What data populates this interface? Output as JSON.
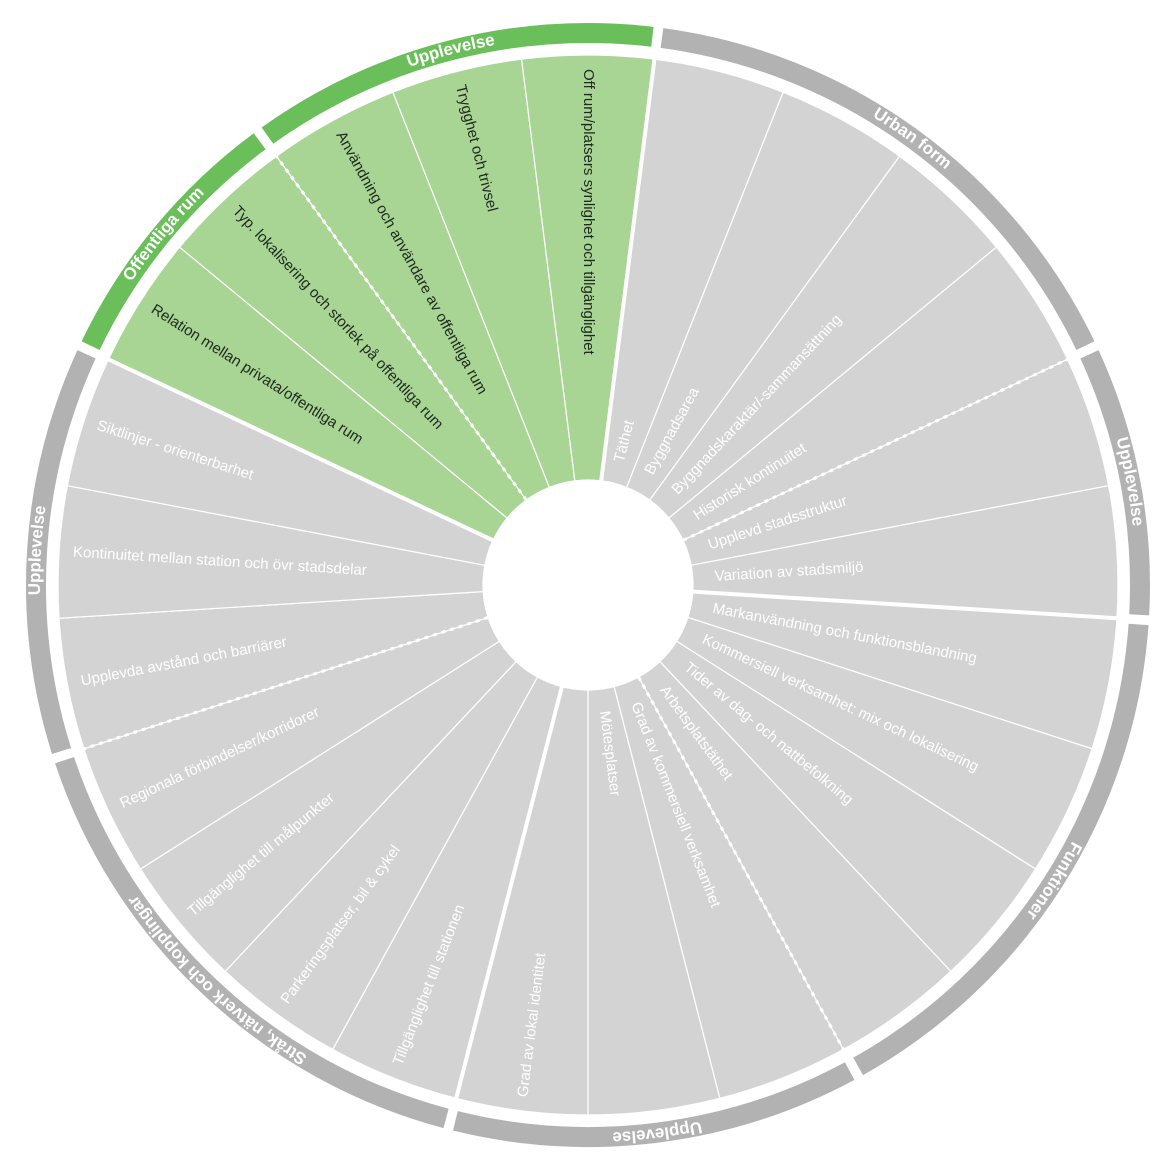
{
  "sections": [
    {
      "label": "Offentliga rum",
      "color": "#a8d494",
      "ring_color": "#6bbf5b",
      "text_color": "#1e2a1e",
      "divider": "solid",
      "items": [
        "Relation mellan privata/offentliga rum",
        "Typ. lokalisering och storlek på offentliga rum"
      ]
    },
    {
      "label": "Upplevelse",
      "color": "#a8d494",
      "ring_color": "#6bbf5b",
      "text_color": "#1e2a1e",
      "divider": "dotted",
      "items": [
        "Användning och användare av offentliga rum",
        "Trygghet och trivsel",
        "Off rum/platsers synlighet och tillgänglighet"
      ]
    },
    {
      "label": "Urban form",
      "color": "#d3d3d3",
      "ring_color": "#b2b2b2",
      "text_color": "#ffffff",
      "divider": "solid",
      "items": [
        "Täthet",
        "Byggnadsarea",
        "Byggnadskaraktär/-sammansättning",
        "Historisk kontinuitet"
      ]
    },
    {
      "label": "Upplevelse",
      "color": "#d3d3d3",
      "ring_color": "#b2b2b2",
      "text_color": "#ffffff",
      "divider": "dotted",
      "items": [
        "Upplevd stadsstruktur",
        "Variation av stadsmiljö"
      ]
    },
    {
      "label": "Funktioner",
      "color": "#d3d3d3",
      "ring_color": "#b2b2b2",
      "text_color": "#ffffff",
      "divider": "solid",
      "items": [
        "Markanvändning och funktionsblandning",
        "Kommersiell verksamhet: mix och lokalisering",
        "Tider av dag- och nattbefolkning",
        "Arbetsplatstäthet"
      ]
    },
    {
      "label": "Upplevelse",
      "color": "#d3d3d3",
      "ring_color": "#b2b2b2",
      "text_color": "#ffffff",
      "divider": "dotted",
      "items": [
        "Grad av kommersiell verksamhet",
        "Mötesplatser",
        "Grad av lokal identitet"
      ]
    },
    {
      "label": "Stråk, nätverk och kopplingar",
      "color": "#d3d3d3",
      "ring_color": "#b2b2b2",
      "text_color": "#ffffff",
      "divider": "solid",
      "items": [
        "Tillgänglighet till stationen",
        "Parkeringsplatser, bil & cykel",
        "Tillgänglighet till målpunkter",
        "Regionala förbindelser/korridorer"
      ]
    },
    {
      "label": "Upplevelse",
      "color": "#d3d3d3",
      "ring_color": "#b2b2b2",
      "text_color": "#ffffff",
      "divider": "dotted",
      "items": [
        "Upplevda avstånd och barriärer",
        "Kontinuitet mellan station och övr stadsdelar",
        "Siktlinjer - orienterbarhet"
      ]
    }
  ]
}
